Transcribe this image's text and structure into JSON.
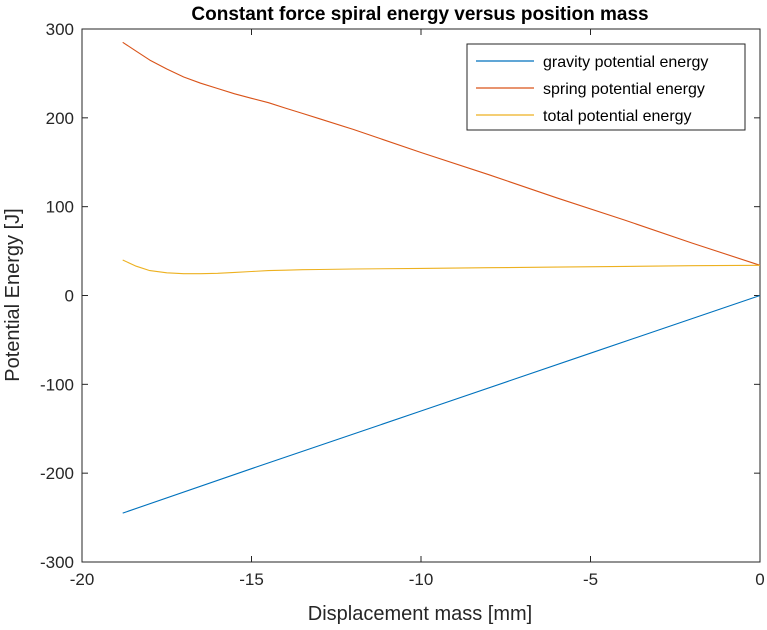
{
  "chart_data": {
    "type": "line",
    "title": "Constant force spiral energy versus position mass",
    "xlabel": "Displacement mass [mm]",
    "ylabel": "Potential Energy [J]",
    "xlim": [
      -20,
      0
    ],
    "ylim": [
      -300,
      300
    ],
    "xticks": [
      -20,
      -15,
      -10,
      -5,
      0
    ],
    "yticks": [
      -300,
      -200,
      -100,
      0,
      100,
      200,
      300
    ],
    "xtick_labels": [
      "-20",
      "-15",
      "-10",
      "-5",
      "0"
    ],
    "ytick_labels": [
      "-300",
      "-200",
      "-100",
      "0",
      "100",
      "200",
      "300"
    ],
    "grid": false,
    "legend_position": "top-right",
    "series": [
      {
        "name": "gravity potential energy",
        "color": "#0072BD",
        "x": [
          -18.8,
          -15,
          -10,
          -5,
          0
        ],
        "y": [
          -245,
          -195,
          -130,
          -65,
          0
        ]
      },
      {
        "name": "spring potential energy",
        "color": "#D95319",
        "x": [
          -18.8,
          -18.4,
          -18.0,
          -17.5,
          -17.0,
          -16.5,
          -16.0,
          -15.5,
          -15.0,
          -14.5,
          -14.0,
          -13.5,
          -13.0,
          -12.0,
          -10.0,
          -8.0,
          -6.0,
          -4.0,
          -2.0,
          0
        ],
        "y": [
          285,
          275,
          265,
          255,
          246,
          239,
          233,
          227,
          222,
          217,
          211,
          205,
          199,
          187,
          161,
          136,
          110,
          85,
          59,
          34
        ]
      },
      {
        "name": "total potential energy",
        "color": "#EDB120",
        "x": [
          -18.8,
          -18.4,
          -18.0,
          -17.5,
          -17.0,
          -16.5,
          -16.0,
          -15.5,
          -15.0,
          -14.5,
          -14.0,
          -13.5,
          -13.0,
          -12.0,
          -10.0,
          -8.0,
          -6.0,
          -4.0,
          -2.0,
          0
        ],
        "y": [
          40,
          33,
          28,
          25.5,
          24.5,
          24.5,
          25,
          26,
          27,
          28,
          28.5,
          29,
          29.3,
          29.8,
          30.5,
          31.3,
          32,
          32.8,
          33.5,
          34
        ]
      }
    ]
  }
}
